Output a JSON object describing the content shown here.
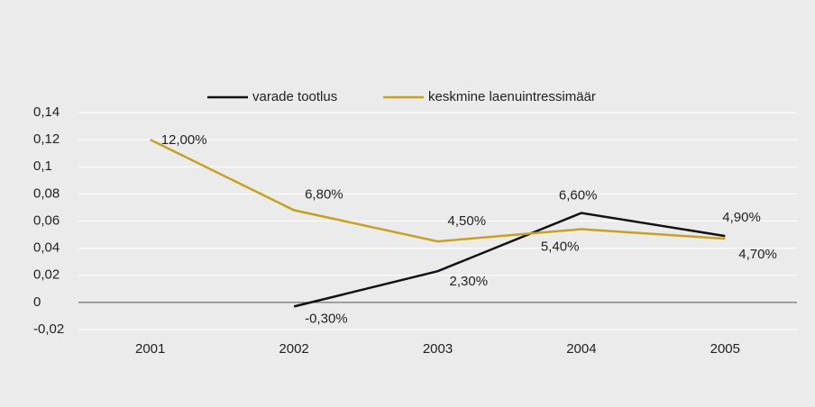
{
  "chart_data": {
    "type": "line",
    "categories": [
      "2001",
      "2002",
      "2003",
      "2004",
      "2005"
    ],
    "series": [
      {
        "name": "varade tootlus",
        "color": "#111111",
        "values": [
          null,
          -0.003,
          0.023,
          0.066,
          0.049
        ],
        "value_labels": [
          null,
          "-0,30%",
          "2,30%",
          "6,60%",
          "4,90%"
        ]
      },
      {
        "name": "keskmine laenuintressimäär",
        "color": "#c9a020",
        "values": [
          0.12,
          0.068,
          0.045,
          0.054,
          0.047
        ],
        "value_labels": [
          "12,00%",
          "6,80%",
          "4,50%",
          "5,40%",
          "4,70%"
        ]
      }
    ],
    "ylim": [
      -0.02,
      0.14
    ],
    "yticks": [
      {
        "value": -0.02,
        "label": "-0,02"
      },
      0,
      {
        "value": 0.02,
        "label": "0,02"
      },
      {
        "value": 0.04,
        "label": "0,04"
      },
      {
        "value": 0.06,
        "label": "0,06"
      },
      {
        "value": 0.08,
        "label": "0,08"
      },
      {
        "value": 0.1,
        "label": "0,1"
      },
      {
        "value": 0.12,
        "label": "0,12"
      },
      {
        "value": 0.14,
        "label": "0,14"
      }
    ],
    "grid": true,
    "legend": "top"
  }
}
